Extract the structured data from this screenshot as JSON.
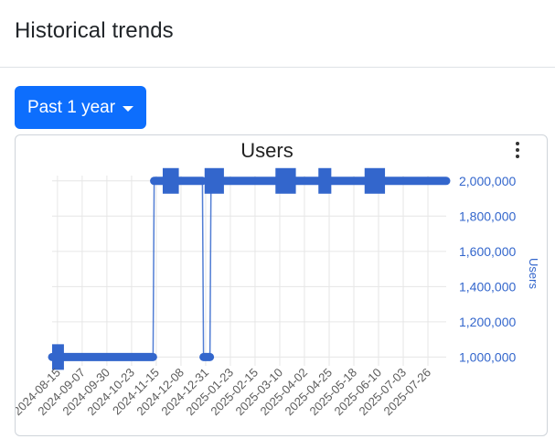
{
  "header": {
    "title": "Historical trends"
  },
  "range_button": {
    "label": "Past 1 year"
  },
  "chart_menu": {
    "icon": "kebab-menu-icon"
  },
  "colors": {
    "accent": "#0d6efd",
    "series": "#3366cc",
    "grid": "#e6e6e6",
    "axis_text": "#5b5b5b"
  },
  "chart_data": {
    "type": "line",
    "title": "Users",
    "xlabel": "",
    "ylabel": "Users",
    "y_axis_side": "right",
    "ylim": [
      950000,
      2030000
    ],
    "y_ticks": [
      1000000,
      1200000,
      1400000,
      1600000,
      1800000,
      2000000
    ],
    "y_tick_labels": [
      "1,000,000",
      "1,200,000",
      "1,400,000",
      "1,600,000",
      "1,800,000",
      "2,000,000"
    ],
    "x_ticks": [
      "2024-08-15",
      "2024-09-07",
      "2024-09-30",
      "2024-10-23",
      "2024-11-15",
      "2024-12-08",
      "2024-12-31",
      "2025-01-23",
      "2025-02-15",
      "2025-03-10",
      "2025-04-02",
      "2025-04-25",
      "2025-05-18",
      "2025-06-10",
      "2025-07-03",
      "2025-07-26"
    ],
    "x_range": [
      "2024-08-10",
      "2025-08-12"
    ],
    "grid": true,
    "series": [
      {
        "name": "",
        "points": [
          [
            "2024-08-10",
            1000000
          ],
          [
            "2024-11-12",
            1000000
          ],
          [
            "2024-11-13",
            2000000
          ],
          [
            "2024-12-28",
            2000000
          ],
          [
            "2024-12-29",
            1000000
          ],
          [
            "2025-01-04",
            1000000
          ],
          [
            "2025-01-05",
            2000000
          ],
          [
            "2025-08-12",
            2000000
          ]
        ],
        "highlighted_ranges": [
          [
            "2024-08-10",
            "2024-08-21"
          ],
          [
            "2024-11-21",
            "2024-12-06"
          ],
          [
            "2024-12-30",
            "2025-01-17"
          ],
          [
            "2025-03-06",
            "2025-03-25"
          ],
          [
            "2025-04-15",
            "2025-04-27"
          ],
          [
            "2025-05-28",
            "2025-06-16"
          ]
        ]
      }
    ]
  }
}
